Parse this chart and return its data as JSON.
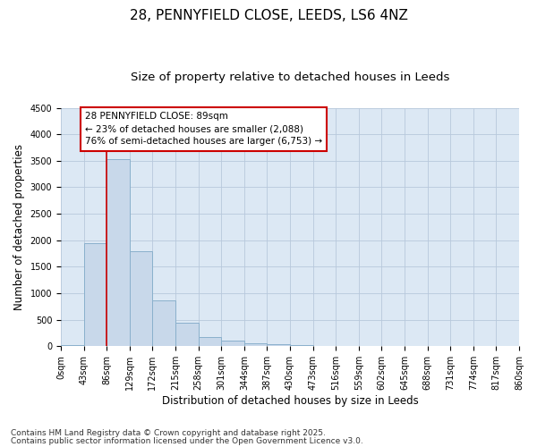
{
  "title": "28, PENNYFIELD CLOSE, LEEDS, LS6 4NZ",
  "subtitle": "Size of property relative to detached houses in Leeds",
  "xlabel": "Distribution of detached houses by size in Leeds",
  "ylabel": "Number of detached properties",
  "bins": [
    0,
    43,
    86,
    129,
    172,
    215,
    258,
    301,
    344,
    387,
    430,
    473,
    516,
    559,
    602,
    645,
    688,
    731,
    774,
    817,
    860
  ],
  "bin_labels": [
    "0sqm",
    "43sqm",
    "86sqm",
    "129sqm",
    "172sqm",
    "215sqm",
    "258sqm",
    "301sqm",
    "344sqm",
    "387sqm",
    "430sqm",
    "473sqm",
    "516sqm",
    "559sqm",
    "602sqm",
    "645sqm",
    "688sqm",
    "731sqm",
    "774sqm",
    "817sqm",
    "860sqm"
  ],
  "bar_heights": [
    30,
    1950,
    3530,
    1800,
    870,
    450,
    175,
    100,
    60,
    45,
    30,
    0,
    0,
    0,
    0,
    0,
    0,
    0,
    0,
    0
  ],
  "bar_color": "#c8d8ea",
  "bar_edgecolor": "#8ab0cc",
  "grid_color": "#b8c8dc",
  "bg_color": "#dce8f4",
  "fig_bg_color": "#ffffff",
  "property_line_x": 86,
  "property_line_color": "#cc0000",
  "annotation_text": "28 PENNYFIELD CLOSE: 89sqm\n← 23% of detached houses are smaller (2,088)\n76% of semi-detached houses are larger (6,753) →",
  "annotation_box_edgecolor": "#cc0000",
  "ylim": [
    0,
    4500
  ],
  "yticks": [
    0,
    500,
    1000,
    1500,
    2000,
    2500,
    3000,
    3500,
    4000,
    4500
  ],
  "footer_line1": "Contains HM Land Registry data © Crown copyright and database right 2025.",
  "footer_line2": "Contains public sector information licensed under the Open Government Licence v3.0.",
  "title_fontsize": 11,
  "subtitle_fontsize": 9.5,
  "axis_label_fontsize": 8.5,
  "tick_fontsize": 7,
  "annotation_fontsize": 7.5,
  "footer_fontsize": 6.5
}
